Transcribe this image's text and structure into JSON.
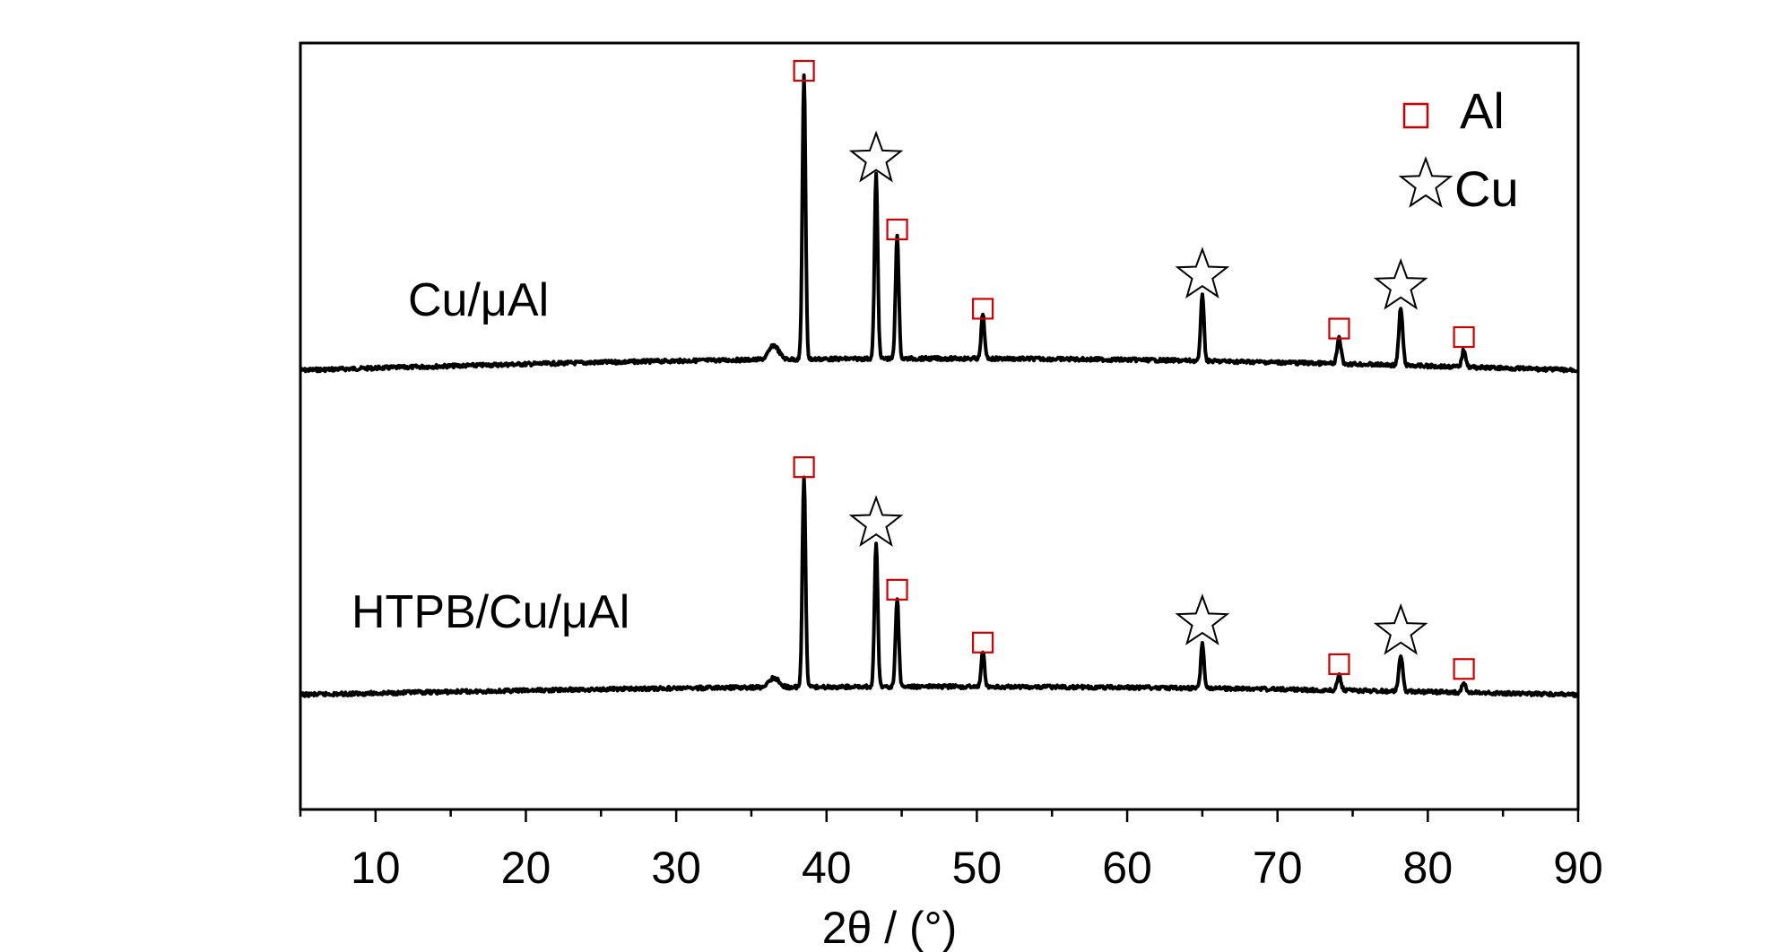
{
  "chart_data": {
    "type": "line",
    "xlabel": "2θ / (°)",
    "ylabel": "",
    "xlim": [
      5,
      90
    ],
    "xticks": [
      "10",
      "20",
      "30",
      "40",
      "50",
      "60",
      "70",
      "80",
      "90"
    ],
    "legend": {
      "placement": "top-right",
      "entries": [
        {
          "name": "Al",
          "marker": "square",
          "color": "#cc0000"
        },
        {
          "name": "Cu",
          "marker": "star",
          "color": "#000000"
        }
      ]
    },
    "series": [
      {
        "name": "Cu/μAl",
        "peaks": [
          {
            "x": 36.5,
            "rel": 0.05,
            "marker": ""
          },
          {
            "x": 38.5,
            "rel": 1.0,
            "marker": "Al"
          },
          {
            "x": 43.3,
            "rel": 0.65,
            "marker": "Cu"
          },
          {
            "x": 44.7,
            "rel": 0.44,
            "marker": "Al"
          },
          {
            "x": 50.4,
            "rel": 0.16,
            "marker": "Al"
          },
          {
            "x": 65.0,
            "rel": 0.24,
            "marker": "Cu"
          },
          {
            "x": 74.1,
            "rel": 0.09,
            "marker": "Al"
          },
          {
            "x": 78.2,
            "rel": 0.2,
            "marker": "Cu"
          },
          {
            "x": 82.4,
            "rel": 0.06,
            "marker": "Al"
          }
        ]
      },
      {
        "name": "HTPB/Cu/μAl",
        "peaks": [
          {
            "x": 36.5,
            "rel": 0.04,
            "marker": ""
          },
          {
            "x": 38.5,
            "rel": 0.88,
            "marker": "Al"
          },
          {
            "x": 43.3,
            "rel": 0.6,
            "marker": "Cu"
          },
          {
            "x": 44.7,
            "rel": 0.37,
            "marker": "Al"
          },
          {
            "x": 50.4,
            "rel": 0.15,
            "marker": "Al"
          },
          {
            "x": 65.0,
            "rel": 0.19,
            "marker": "Cu"
          },
          {
            "x": 74.1,
            "rel": 0.06,
            "marker": "Al"
          },
          {
            "x": 78.2,
            "rel": 0.15,
            "marker": "Cu"
          },
          {
            "x": 82.4,
            "rel": 0.04,
            "marker": "Al"
          }
        ]
      }
    ]
  }
}
